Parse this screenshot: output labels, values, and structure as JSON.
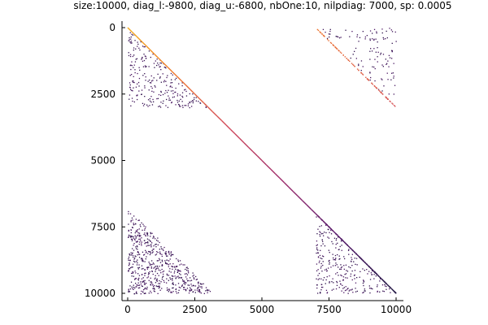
{
  "chart_data": {
    "type": "heatmap",
    "title": "size:10000, diag_l:-9800, diag_u:-6800, nbOne:10, nilpdiag: 7000, sp: 0.0005",
    "xlabel": "",
    "ylabel": "",
    "xlim": [
      0,
      10000
    ],
    "ylim": [
      0,
      10000
    ],
    "y_inverted": true,
    "grid": false,
    "xticks": [
      {
        "value": 0,
        "label": "0"
      },
      {
        "value": 2500,
        "label": "2500"
      },
      {
        "value": 5000,
        "label": "5000"
      },
      {
        "value": 7500,
        "label": "7500"
      },
      {
        "value": 10000,
        "label": "10000"
      }
    ],
    "yticks": [
      {
        "value": 0,
        "label": "0"
      },
      {
        "value": 2500,
        "label": "2500"
      },
      {
        "value": 5000,
        "label": "5000"
      },
      {
        "value": 7500,
        "label": "7500"
      },
      {
        "value": 10000,
        "label": "10000"
      }
    ],
    "colormap": [
      "#1a0f3d",
      "#5a1a6e",
      "#9b2a6a",
      "#d2495a",
      "#f07a2a",
      "#f5b81a"
    ],
    "diagonal": {
      "from": [
        0,
        0
      ],
      "to": [
        10000,
        10000
      ]
    },
    "sparse_blocks": [
      {
        "name": "upper-left",
        "row_range": [
          0,
          3000
        ],
        "col_range": [
          0,
          3000
        ],
        "shape": "lower-triangle"
      },
      {
        "name": "upper-right",
        "row_range": [
          0,
          3000
        ],
        "col_range": [
          7000,
          10000
        ],
        "shape": "upper-triangle"
      },
      {
        "name": "lower-left",
        "row_range": [
          6800,
          10000
        ],
        "col_range": [
          0,
          3200
        ],
        "shape": "lower-triangle"
      },
      {
        "name": "lower-right",
        "row_range": [
          7000,
          10000
        ],
        "col_range": [
          7000,
          10000
        ],
        "shape": "lower-triangle"
      }
    ],
    "dense_diagonals": [
      {
        "name": "upper-right-band",
        "from": [
          0,
          7000
        ],
        "to": [
          3000,
          10000
        ]
      },
      {
        "name": "lower-right-band",
        "from": [
          7000,
          7000
        ],
        "to": [
          10000,
          10000
        ]
      }
    ]
  }
}
